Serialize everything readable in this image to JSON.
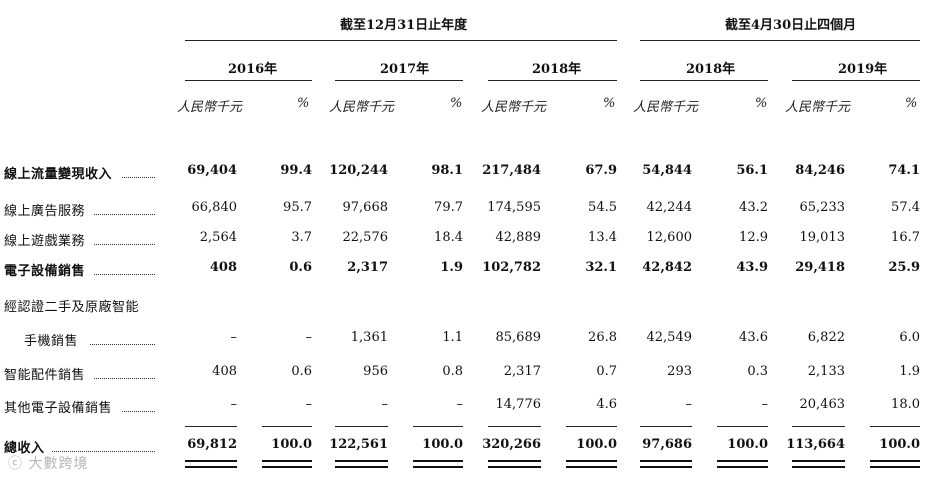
{
  "header": {
    "group_year": "截至12月31日止年度",
    "group_period": "截至4月30日止四個月",
    "years": [
      "2016年",
      "2017年",
      "2018年",
      "2018年",
      "2019年"
    ],
    "unit_amount": "人民幣千元",
    "unit_pct": "%"
  },
  "rows": [
    {
      "label": "線上流量變現收入",
      "bold": true,
      "values": [
        "69,404",
        "99.4",
        "120,244",
        "98.1",
        "217,484",
        "67.9",
        "54,844",
        "56.1",
        "84,246",
        "74.1"
      ]
    },
    {
      "label": "線上廣告服務",
      "bold": false,
      "values": [
        "66,840",
        "95.7",
        "97,668",
        "79.7",
        "174,595",
        "54.5",
        "42,244",
        "43.2",
        "65,233",
        "57.4"
      ]
    },
    {
      "label": "線上遊戲業務",
      "bold": false,
      "values": [
        "2,564",
        "3.7",
        "22,576",
        "18.4",
        "42,889",
        "13.4",
        "12,600",
        "12.9",
        "19,013",
        "16.7"
      ]
    },
    {
      "label": "電子設備銷售",
      "bold": true,
      "values": [
        "408",
        "0.6",
        "2,317",
        "1.9",
        "102,782",
        "32.1",
        "42,842",
        "43.9",
        "29,418",
        "25.9"
      ]
    },
    {
      "label": "經認證二手及原廠智能",
      "bold": false,
      "values": [
        "",
        "",
        "",
        "",
        "",
        "",
        "",
        "",
        "",
        ""
      ]
    },
    {
      "label": "手機銷售",
      "bold": false,
      "indent": true,
      "values": [
        "–",
        "–",
        "1,361",
        "1.1",
        "85,689",
        "26.8",
        "42,549",
        "43.6",
        "6,822",
        "6.0"
      ]
    },
    {
      "label": "智能配件銷售",
      "bold": false,
      "values": [
        "408",
        "0.6",
        "956",
        "0.8",
        "2,317",
        "0.7",
        "293",
        "0.3",
        "2,133",
        "1.9"
      ]
    },
    {
      "label": "其他電子設備銷售",
      "bold": false,
      "values": [
        "–",
        "–",
        "–",
        "–",
        "14,776",
        "4.6",
        "–",
        "–",
        "20,463",
        "18.0"
      ]
    },
    {
      "label": "總收入",
      "bold": true,
      "values": [
        "69,812",
        "100.0",
        "122,561",
        "100.0",
        "320,266",
        "100.0",
        "97,686",
        "100.0",
        "113,664",
        "100.0"
      ]
    }
  ],
  "watermark": "大數跨境"
}
